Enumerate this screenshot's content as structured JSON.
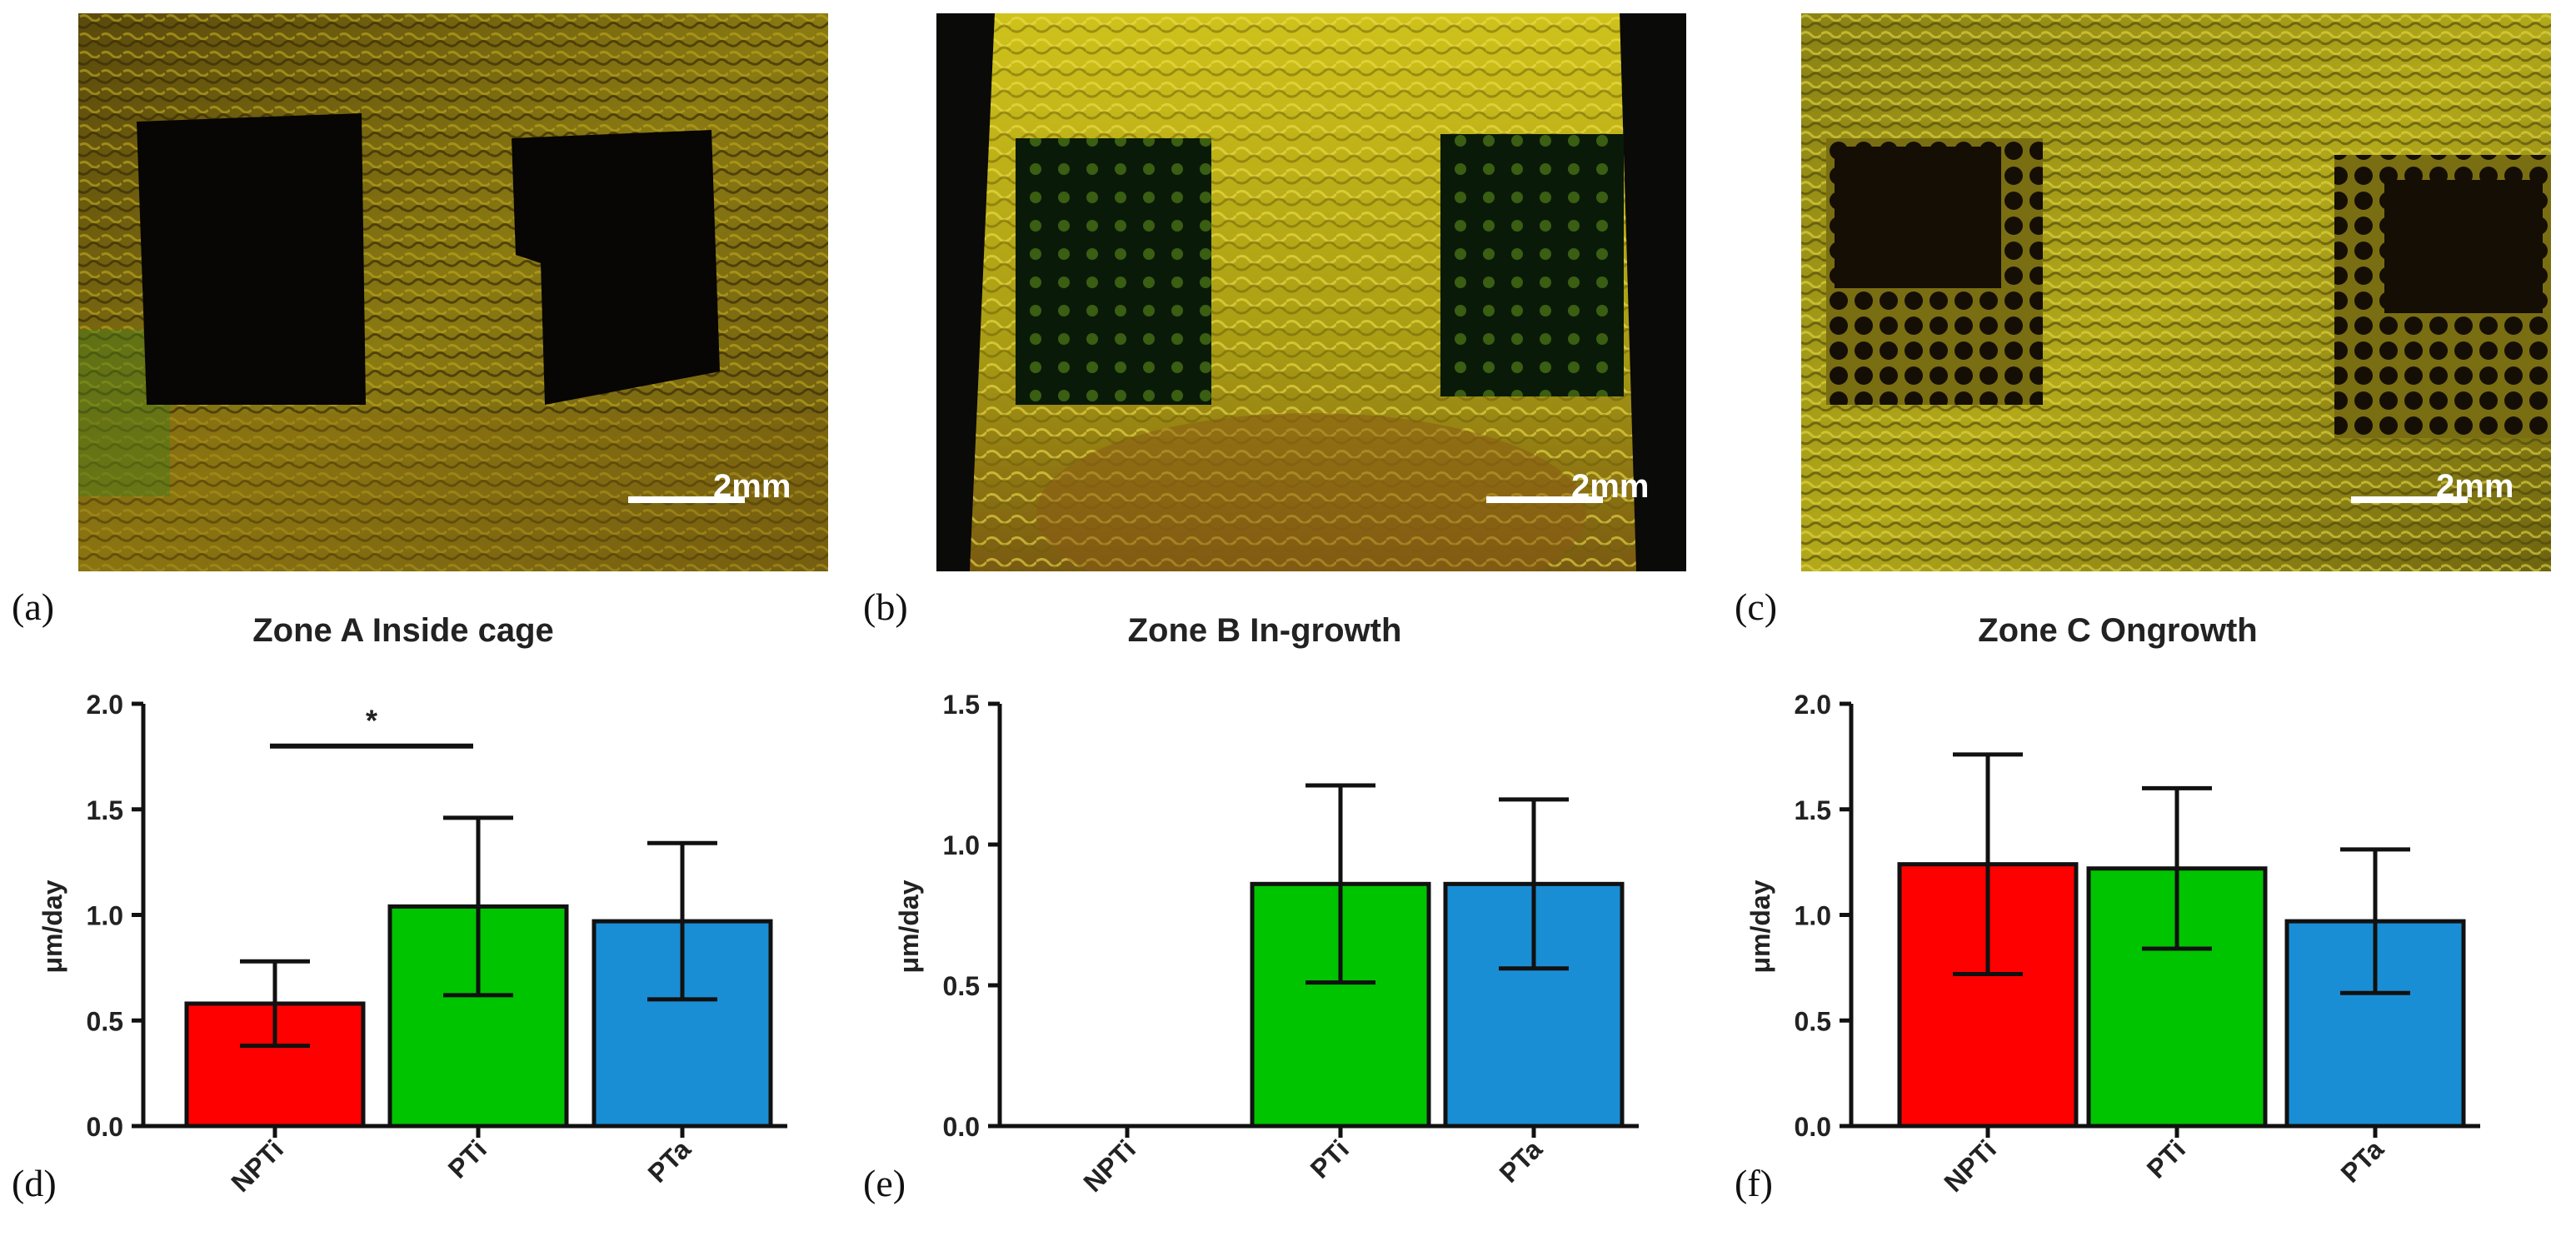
{
  "panels": {
    "a": {
      "letter": "(a)",
      "scale_label": "2mm"
    },
    "b": {
      "letter": "(b)",
      "scale_label": "2mm"
    },
    "c": {
      "letter": "(c)",
      "scale_label": "2mm"
    },
    "d": {
      "letter": "(d)"
    },
    "e": {
      "letter": "(e)"
    },
    "f": {
      "letter": "(f)"
    }
  },
  "colors": {
    "NPTi": "#ff0000",
    "PTi": "#00c400",
    "PTa": "#1a8ed4"
  },
  "chart_data": [
    {
      "type": "bar",
      "title": "Zone A Inside cage",
      "ylabel": "μm/day",
      "xlabel": "",
      "categories": [
        "NPTi",
        "PTi",
        "PTa"
      ],
      "values": [
        0.58,
        1.04,
        0.97
      ],
      "errors": [
        0.2,
        0.42,
        0.37
      ],
      "ylim": [
        0,
        2.0
      ],
      "yticks": [
        0.0,
        0.5,
        1.0,
        1.5,
        2.0
      ],
      "ytick_labels": [
        "0.0",
        "0.5",
        "1.0",
        "1.5",
        "2.0"
      ],
      "significance": {
        "between": [
          "NPTi",
          "PTi"
        ],
        "label": "*"
      }
    },
    {
      "type": "bar",
      "title": "Zone B In-growth",
      "ylabel": "μm/day",
      "xlabel": "",
      "categories": [
        "NPTi",
        "PTi",
        "PTa"
      ],
      "values": [
        0,
        0.86,
        0.86
      ],
      "errors": [
        0,
        0.35,
        0.3
      ],
      "ylim": [
        0,
        1.5
      ],
      "yticks": [
        0.0,
        0.5,
        1.0,
        1.5
      ],
      "ytick_labels": [
        "0.0",
        "0.5",
        "1.0",
        "1.5"
      ]
    },
    {
      "type": "bar",
      "title": "Zone C Ongrowth",
      "ylabel": "μm/day",
      "xlabel": "",
      "categories": [
        "NPTi",
        "PTi",
        "PTa"
      ],
      "values": [
        1.24,
        1.22,
        0.97
      ],
      "errors": [
        0.52,
        0.38,
        0.34
      ],
      "ylim": [
        0,
        2.0
      ],
      "yticks": [
        0.0,
        0.5,
        1.0,
        1.5,
        2.0
      ],
      "ytick_labels": [
        "0.0",
        "0.5",
        "1.0",
        "1.5",
        "2.0"
      ]
    }
  ]
}
